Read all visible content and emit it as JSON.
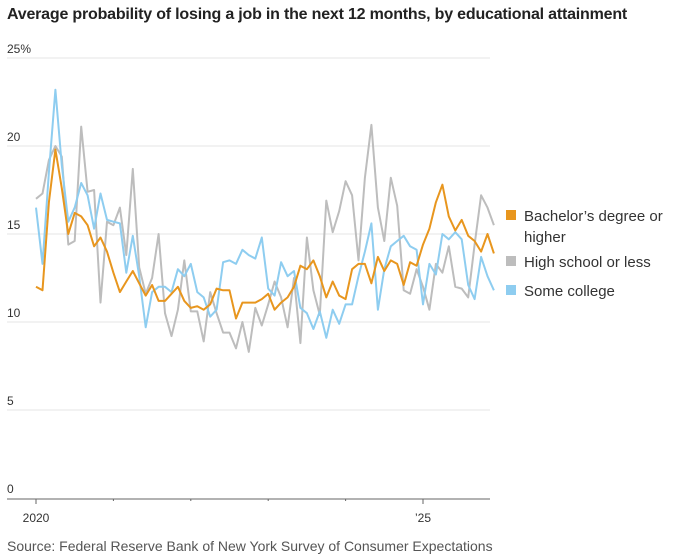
{
  "chart_data": {
    "type": "line",
    "title": "Average probability of losing a job in the next 12 months, by educational attainment",
    "xlabel": "",
    "ylabel": "",
    "ylim": [
      0,
      25
    ],
    "y_ticks": [
      {
        "value": 25,
        "label": "25%"
      },
      {
        "value": 20,
        "label": "20"
      },
      {
        "value": 15,
        "label": "15"
      },
      {
        "value": 10,
        "label": "10"
      },
      {
        "value": 5,
        "label": "5"
      },
      {
        "value": 0,
        "label": "0"
      }
    ],
    "x_ticks": [
      {
        "month_index": 0,
        "label": "2020"
      },
      {
        "month_index": 12,
        "label": ""
      },
      {
        "month_index": 24,
        "label": ""
      },
      {
        "month_index": 36,
        "label": ""
      },
      {
        "month_index": 48,
        "label": ""
      },
      {
        "month_index": 60,
        "label": "’25"
      }
    ],
    "x_start": "2020-01",
    "x_frequency": "monthly",
    "grid": true,
    "legend_position": "right",
    "series": [
      {
        "name": "Bachelor’s degree or higher",
        "color": "#e8961e",
        "values": [
          12.0,
          11.8,
          16.8,
          19.8,
          17.6,
          15.0,
          16.2,
          16.0,
          15.5,
          14.3,
          14.8,
          14.0,
          12.8,
          11.7,
          12.3,
          12.9,
          12.2,
          11.5,
          12.1,
          11.2,
          11.2,
          11.6,
          12.0,
          11.2,
          10.8,
          10.9,
          10.7,
          11.0,
          11.9,
          11.8,
          11.8,
          10.2,
          11.1,
          11.1,
          11.1,
          11.3,
          11.6,
          10.7,
          11.1,
          11.4,
          12.0,
          13.2,
          13.0,
          13.5,
          12.6,
          11.4,
          12.3,
          11.5,
          11.3,
          13.0,
          13.3,
          13.3,
          12.2,
          13.7,
          12.9,
          13.5,
          13.3,
          12.1,
          13.4,
          13.2,
          14.4,
          15.3,
          16.8,
          17.8,
          16.0,
          15.2,
          15.8,
          14.9,
          14.6,
          14.0,
          15.0,
          13.9
        ]
      },
      {
        "name": "High school or less",
        "color": "#bdbdbd",
        "values": [
          17.0,
          17.3,
          19.2,
          20.0,
          19.4,
          14.4,
          14.6,
          21.1,
          17.4,
          17.5,
          11.1,
          15.7,
          15.5,
          16.5,
          13.8,
          18.7,
          13.1,
          11.6,
          12.5,
          15.0,
          10.5,
          9.2,
          10.7,
          13.5,
          10.6,
          10.6,
          8.9,
          11.7,
          10.5,
          9.4,
          9.4,
          8.5,
          10.0,
          8.3,
          10.8,
          9.8,
          11.0,
          12.3,
          11.4,
          9.7,
          12.5,
          8.8,
          14.8,
          11.8,
          10.4,
          16.9,
          15.1,
          16.3,
          18.0,
          17.2,
          13.5,
          18.2,
          21.2,
          16.5,
          14.6,
          18.2,
          16.6,
          11.8,
          11.6,
          13.0,
          12.0,
          10.7,
          13.3,
          12.8,
          14.3,
          12.0,
          11.9,
          11.4,
          14.4,
          17.2,
          16.5,
          15.5
        ]
      },
      {
        "name": "Some college",
        "color": "#8ecdf0",
        "values": [
          16.5,
          13.3,
          18.5,
          23.2,
          18.9,
          15.7,
          16.5,
          17.9,
          17.2,
          15.3,
          17.3,
          15.8,
          15.7,
          15.6,
          12.8,
          14.9,
          12.6,
          9.7,
          11.7,
          12.0,
          12.0,
          11.7,
          13.0,
          12.6,
          13.3,
          11.7,
          11.4,
          10.3,
          10.7,
          13.4,
          13.5,
          13.3,
          14.1,
          13.8,
          13.6,
          14.8,
          11.9,
          11.5,
          13.4,
          12.6,
          12.9,
          10.8,
          10.5,
          9.6,
          10.6,
          9.1,
          10.7,
          9.9,
          11.0,
          11.0,
          12.6,
          14.0,
          15.6,
          10.7,
          13.0,
          14.3,
          14.6,
          14.9,
          14.3,
          14.1,
          11.0,
          13.3,
          12.7,
          15.0,
          14.7,
          15.1,
          14.7,
          12.1,
          11.3,
          13.7,
          12.6,
          11.8
        ]
      }
    ]
  },
  "legend": {
    "items": [
      {
        "label": "Bachelor’s degree or higher",
        "color": "#e8961e"
      },
      {
        "label": "High school or less",
        "color": "#bdbdbd"
      },
      {
        "label": "Some college",
        "color": "#8ecdf0"
      }
    ]
  },
  "source_text": "Source: Federal Reserve Bank of New York Survey of Consumer Expectations"
}
